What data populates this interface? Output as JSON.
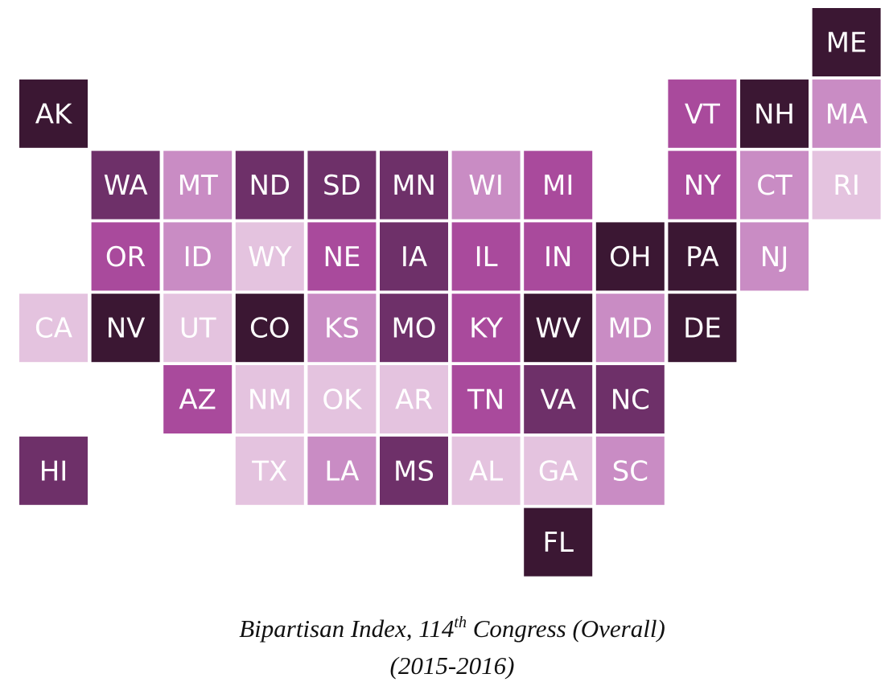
{
  "tiles": [
    {
      "label": "ME",
      "color": "#3b1733"
    },
    {
      "label": "AK",
      "color": "#3b1733"
    },
    {
      "label": "VT",
      "color": "#a94a9c"
    },
    {
      "label": "NH",
      "color": "#3b1733"
    },
    {
      "label": "MA",
      "color": "#c98cc4"
    },
    {
      "label": "WA",
      "color": "#6e3069"
    },
    {
      "label": "MT",
      "color": "#c98cc4"
    },
    {
      "label": "ND",
      "color": "#6e3069"
    },
    {
      "label": "SD",
      "color": "#6e3069"
    },
    {
      "label": "MN",
      "color": "#6e3069"
    },
    {
      "label": "WI",
      "color": "#c98cc4"
    },
    {
      "label": "MI",
      "color": "#a94a9c"
    },
    {
      "label": "NY",
      "color": "#a94a9c"
    },
    {
      "label": "CT",
      "color": "#c98cc4"
    },
    {
      "label": "RI",
      "color": "#e4c3df"
    },
    {
      "label": "OR",
      "color": "#a94a9c"
    },
    {
      "label": "ID",
      "color": "#c98cc4"
    },
    {
      "label": "WY",
      "color": "#e4c3df"
    },
    {
      "label": "NE",
      "color": "#a94a9c"
    },
    {
      "label": "IA",
      "color": "#6e3069"
    },
    {
      "label": "IL",
      "color": "#a94a9c"
    },
    {
      "label": "IN",
      "color": "#a94a9c"
    },
    {
      "label": "OH",
      "color": "#3b1733"
    },
    {
      "label": "PA",
      "color": "#3b1733"
    },
    {
      "label": "NJ",
      "color": "#c98cc4"
    },
    {
      "label": "CA",
      "color": "#e4c3df"
    },
    {
      "label": "NV",
      "color": "#3b1733"
    },
    {
      "label": "UT",
      "color": "#e4c3df"
    },
    {
      "label": "CO",
      "color": "#3b1733"
    },
    {
      "label": "KS",
      "color": "#c98cc4"
    },
    {
      "label": "MO",
      "color": "#6e3069"
    },
    {
      "label": "KY",
      "color": "#a94a9c"
    },
    {
      "label": "WV",
      "color": "#3b1733"
    },
    {
      "label": "MD",
      "color": "#c98cc4"
    },
    {
      "label": "DE",
      "color": "#3b1733"
    },
    {
      "label": "AZ",
      "color": "#a94a9c"
    },
    {
      "label": "NM",
      "color": "#e4c3df"
    },
    {
      "label": "OK",
      "color": "#e4c3df"
    },
    {
      "label": "AR",
      "color": "#e4c3df"
    },
    {
      "label": "TN",
      "color": "#a94a9c"
    },
    {
      "label": "VA",
      "color": "#6e3069"
    },
    {
      "label": "NC",
      "color": "#6e3069"
    },
    {
      "label": "HI",
      "color": "#6e3069"
    },
    {
      "label": "TX",
      "color": "#e4c3df"
    },
    {
      "label": "LA",
      "color": "#c98cc4"
    },
    {
      "label": "MS",
      "color": "#6e3069"
    },
    {
      "label": "AL",
      "color": "#e4c3df"
    },
    {
      "label": "GA",
      "color": "#e4c3df"
    },
    {
      "label": "SC",
      "color": "#c98cc4"
    },
    {
      "label": "FL",
      "color": "#3b1733"
    }
  ],
  "caption": {
    "before": "Bipartisan Index, 114",
    "superscript": "th",
    "after": " Congress (Overall)",
    "line2": "(2015-2016)"
  }
}
